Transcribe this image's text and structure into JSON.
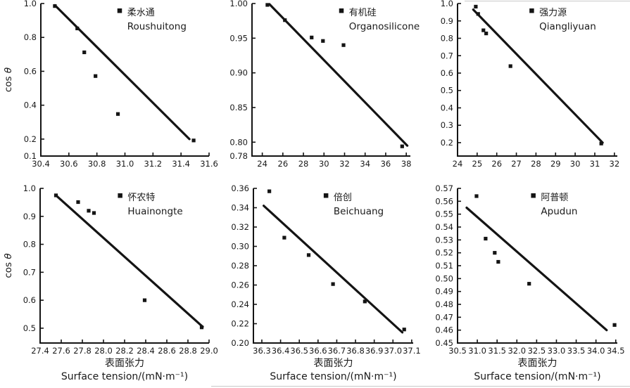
{
  "page": {
    "background": "#ffffff",
    "ink": "#141414",
    "artifact_line_color": "#c9c9c9"
  },
  "chart_data": [
    {
      "type": "scatter",
      "id": "roushuitong",
      "legend": {
        "cn": "柔水通",
        "en": "Roushuitong"
      },
      "ylabel": "cos θ",
      "xlabel_cn": null,
      "xlabel_en": null,
      "xlim": [
        30.4,
        31.6
      ],
      "ylim": [
        0.1,
        1.0
      ],
      "x_ticks": [
        "30.4",
        "30.6",
        "30.8",
        "31.0",
        "31.2",
        "31.4",
        "31.6"
      ],
      "y_ticks": [
        "0.1",
        "0.2",
        "0.4",
        "0.6",
        "0.8",
        "1.0"
      ],
      "points": [
        [
          30.5,
          0.985
        ],
        [
          30.66,
          0.853
        ],
        [
          30.71,
          0.712
        ],
        [
          30.79,
          0.572
        ],
        [
          30.95,
          0.348
        ],
        [
          31.49,
          0.192
        ]
      ],
      "fit_line": [
        [
          30.5,
          0.99
        ],
        [
          31.46,
          0.2
        ]
      ],
      "marker": "black-square",
      "grid": false,
      "legend_position": "top-inside"
    },
    {
      "type": "scatter",
      "id": "organosilicone",
      "legend": {
        "cn": "有机硅",
        "en": "Organosilicone"
      },
      "ylabel": null,
      "xlabel_cn": null,
      "xlabel_en": null,
      "xlim": [
        23.0,
        38.4
      ],
      "ylim": [
        0.78,
        1.0
      ],
      "x_ticks": [
        "24",
        "26",
        "28",
        "30",
        "32",
        "34",
        "36",
        "38"
      ],
      "y_ticks": [
        "0.78",
        "0.80",
        "0.85",
        "0.90",
        "0.95",
        "1.00"
      ],
      "points": [
        [
          24.5,
          0.998
        ],
        [
          26.2,
          0.976
        ],
        [
          28.8,
          0.951
        ],
        [
          29.9,
          0.946
        ],
        [
          31.9,
          0.94
        ],
        [
          37.6,
          0.794
        ]
      ],
      "fit_line": [
        [
          24.7,
          0.999
        ],
        [
          38.1,
          0.795
        ]
      ],
      "marker": "black-square",
      "grid": false,
      "legend_position": "top-inside"
    },
    {
      "type": "scatter",
      "id": "qiangliyuan",
      "legend": {
        "cn": "强力源",
        "en": "Qiangliyuan"
      },
      "ylabel": null,
      "xlabel_cn": null,
      "xlabel_en": null,
      "xlim": [
        24.0,
        32.15
      ],
      "ylim": [
        0.123,
        1.0
      ],
      "x_ticks": [
        "24",
        "25",
        "26",
        "27",
        "28",
        "29",
        "30",
        "31",
        "32"
      ],
      "y_ticks": [
        "0.2",
        "0.3",
        "0.4",
        "0.5",
        "0.6",
        "0.7",
        "0.8",
        "0.9",
        "1.0"
      ],
      "points": [
        [
          24.93,
          0.982
        ],
        [
          25.05,
          0.94
        ],
        [
          25.32,
          0.846
        ],
        [
          25.46,
          0.828
        ],
        [
          26.7,
          0.64
        ],
        [
          31.33,
          0.195
        ]
      ],
      "fit_line": [
        [
          24.8,
          0.965
        ],
        [
          31.4,
          0.2
        ]
      ],
      "marker": "black-square",
      "grid": false,
      "legend_position": "top-inside"
    },
    {
      "type": "scatter",
      "id": "huainongte",
      "legend": {
        "cn": "怀农特",
        "en": "Huainongte"
      },
      "ylabel": "cos θ",
      "xlabel_cn": "表面张力",
      "xlabel_en": "Surface tension/(mN·m⁻¹)",
      "xlim": [
        27.4,
        29.0
      ],
      "ylim": [
        0.447,
        1.0
      ],
      "x_ticks": [
        "27.4",
        "27.6",
        "27.8",
        "28.0",
        "28.2",
        "28.4",
        "28.6",
        "28.8",
        "29.0"
      ],
      "y_ticks": [
        "0.5",
        "0.6",
        "0.7",
        "0.8",
        "0.9",
        "1.0"
      ],
      "points": [
        [
          27.55,
          0.975
        ],
        [
          27.76,
          0.951
        ],
        [
          27.86,
          0.92
        ],
        [
          27.91,
          0.912
        ],
        [
          28.39,
          0.6
        ],
        [
          28.93,
          0.503
        ]
      ],
      "fit_line": [
        [
          27.55,
          0.975
        ],
        [
          28.94,
          0.505
        ]
      ],
      "marker": "black-square",
      "grid": false,
      "legend_position": "top-inside"
    },
    {
      "type": "scatter",
      "id": "beichuang",
      "legend": {
        "cn": "倍创",
        "en": "Beichuang"
      },
      "ylabel": null,
      "xlabel_cn": "表面张力",
      "xlabel_en": "Surface tension/(mN·m⁻¹)",
      "xlim": [
        36.255,
        37.108
      ],
      "ylim": [
        0.2,
        0.36
      ],
      "x_ticks": [
        "36.3",
        "36.4",
        "36.5",
        "36.6",
        "36.7",
        "36.8",
        "36.9",
        "37.0",
        "37.1"
      ],
      "y_ticks": [
        "0.20",
        "0.22",
        "0.24",
        "0.26",
        "0.28",
        "0.30",
        "0.32",
        "0.34",
        "0.36"
      ],
      "points": [
        [
          36.34,
          0.357
        ],
        [
          36.42,
          0.309
        ],
        [
          36.55,
          0.291
        ],
        [
          36.68,
          0.261
        ],
        [
          36.85,
          0.243
        ],
        [
          37.06,
          0.214
        ]
      ],
      "fit_line": [
        [
          36.31,
          0.342
        ],
        [
          37.05,
          0.211
        ]
      ],
      "marker": "black-square",
      "grid": false,
      "legend_position": "top-inside"
    },
    {
      "type": "scatter",
      "id": "apudun",
      "legend": {
        "cn": "阿普顿",
        "en": "Apudun"
      },
      "ylabel": null,
      "xlabel_cn": "表面张力",
      "xlabel_en": "Surface tension/(mN·m⁻¹)",
      "xlim": [
        30.5,
        34.54
      ],
      "ylim": [
        0.45,
        0.57
      ],
      "x_ticks": [
        "30.5",
        "31.0",
        "31.5",
        "32.0",
        "32.5",
        "33.0",
        "33.5",
        "34.0",
        "34.5"
      ],
      "y_ticks": [
        "0.45",
        "0.46",
        "0.47",
        "0.48",
        "0.49",
        "0.50",
        "0.51",
        "0.52",
        "0.53",
        "0.54",
        "0.55",
        "0.56",
        "0.57"
      ],
      "points": [
        [
          30.98,
          0.564
        ],
        [
          31.21,
          0.531
        ],
        [
          31.44,
          0.52
        ],
        [
          31.53,
          0.513
        ],
        [
          32.31,
          0.496
        ],
        [
          34.47,
          0.464
        ]
      ],
      "fit_line": [
        [
          30.73,
          0.555
        ],
        [
          34.27,
          0.46
        ]
      ],
      "marker": "black-square",
      "grid": false,
      "legend_position": "top-inside"
    }
  ]
}
